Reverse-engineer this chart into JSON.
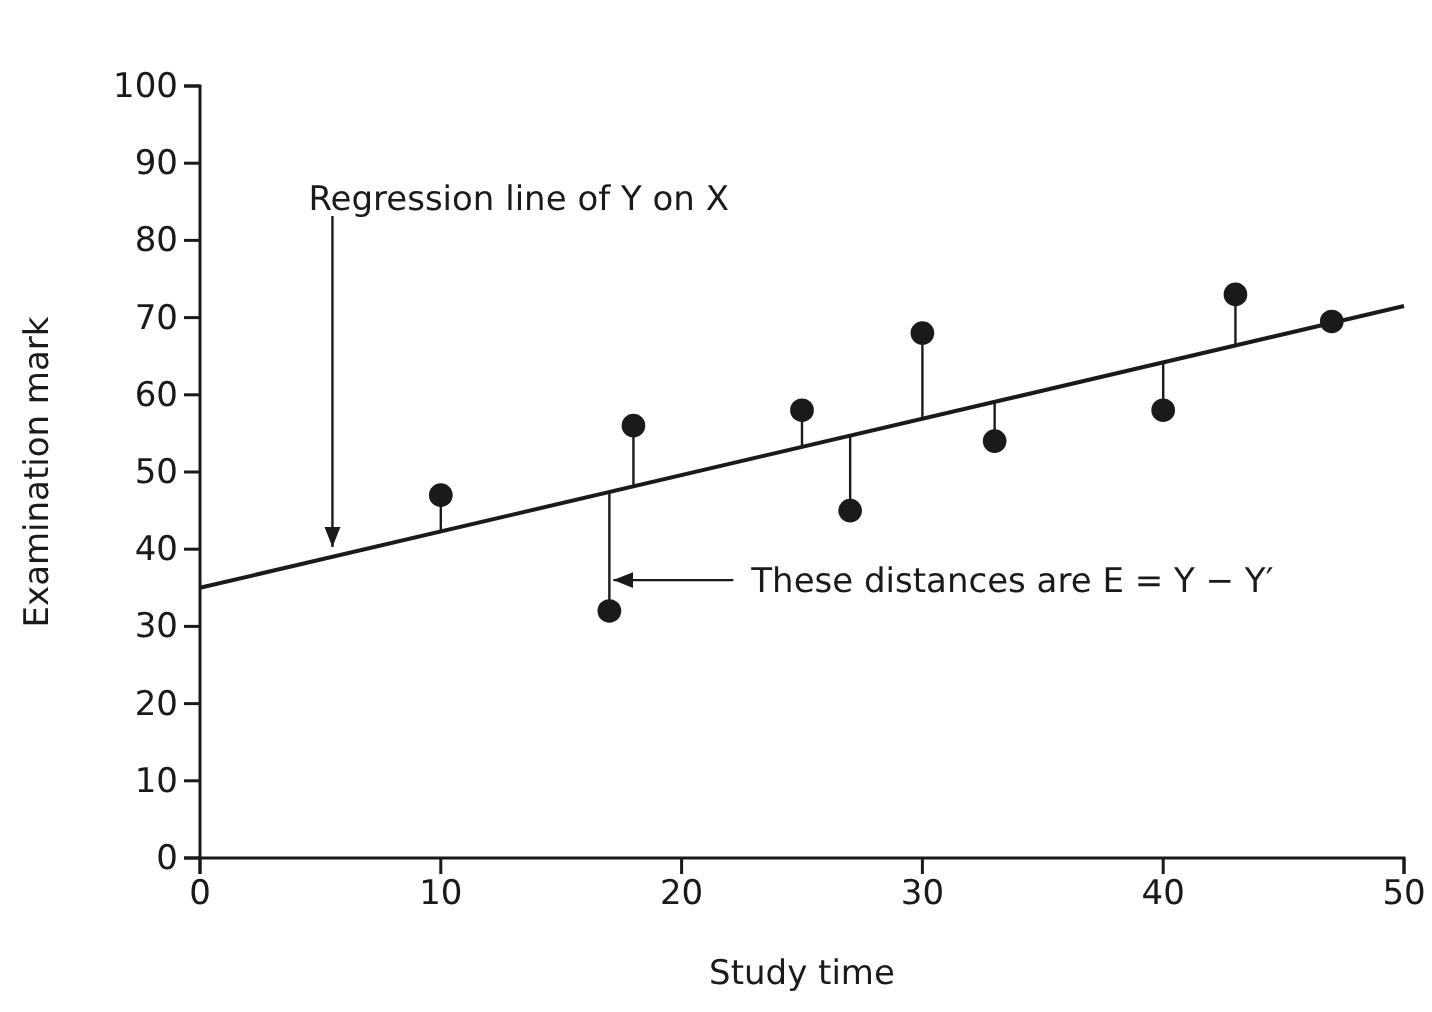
{
  "chart_data": {
    "type": "scatter",
    "xlabel": "Study time",
    "ylabel": "Examination mark",
    "xlim": [
      0,
      50
    ],
    "xticks": [
      0,
      10,
      20,
      30,
      40,
      50
    ],
    "ylim": [
      0,
      100
    ],
    "yticks": [
      0,
      10,
      20,
      30,
      40,
      50,
      60,
      70,
      80,
      90,
      100
    ],
    "grid": false,
    "series": [
      {
        "marker": "circle",
        "color": "#1a1a1a",
        "x": [
          10,
          17,
          18,
          25,
          27,
          30,
          33,
          40,
          43,
          47
        ],
        "values": [
          47,
          32,
          56,
          58,
          45,
          68,
          54,
          58,
          73,
          69.5
        ],
        "errors": [
          [
            42.3,
            47
          ],
          [
            32,
            47.4
          ],
          [
            48.1,
            56
          ],
          [
            53.3,
            58
          ],
          [
            45,
            54.7
          ],
          [
            56.9,
            68
          ],
          [
            54,
            59.1
          ],
          [
            58,
            64.2
          ],
          [
            66.4,
            73
          ],
          null
        ]
      },
      {
        "type": "line",
        "color": "#1a1a1a",
        "x": [
          0,
          50
        ],
        "values": [
          35,
          71.5
        ],
        "line_style": "solid"
      }
    ],
    "annotations": [
      {
        "text": "Regression line of Y on X",
        "x": 5.5,
        "y": 39
      },
      "These distances are E = Y − Y′"
    ]
  }
}
